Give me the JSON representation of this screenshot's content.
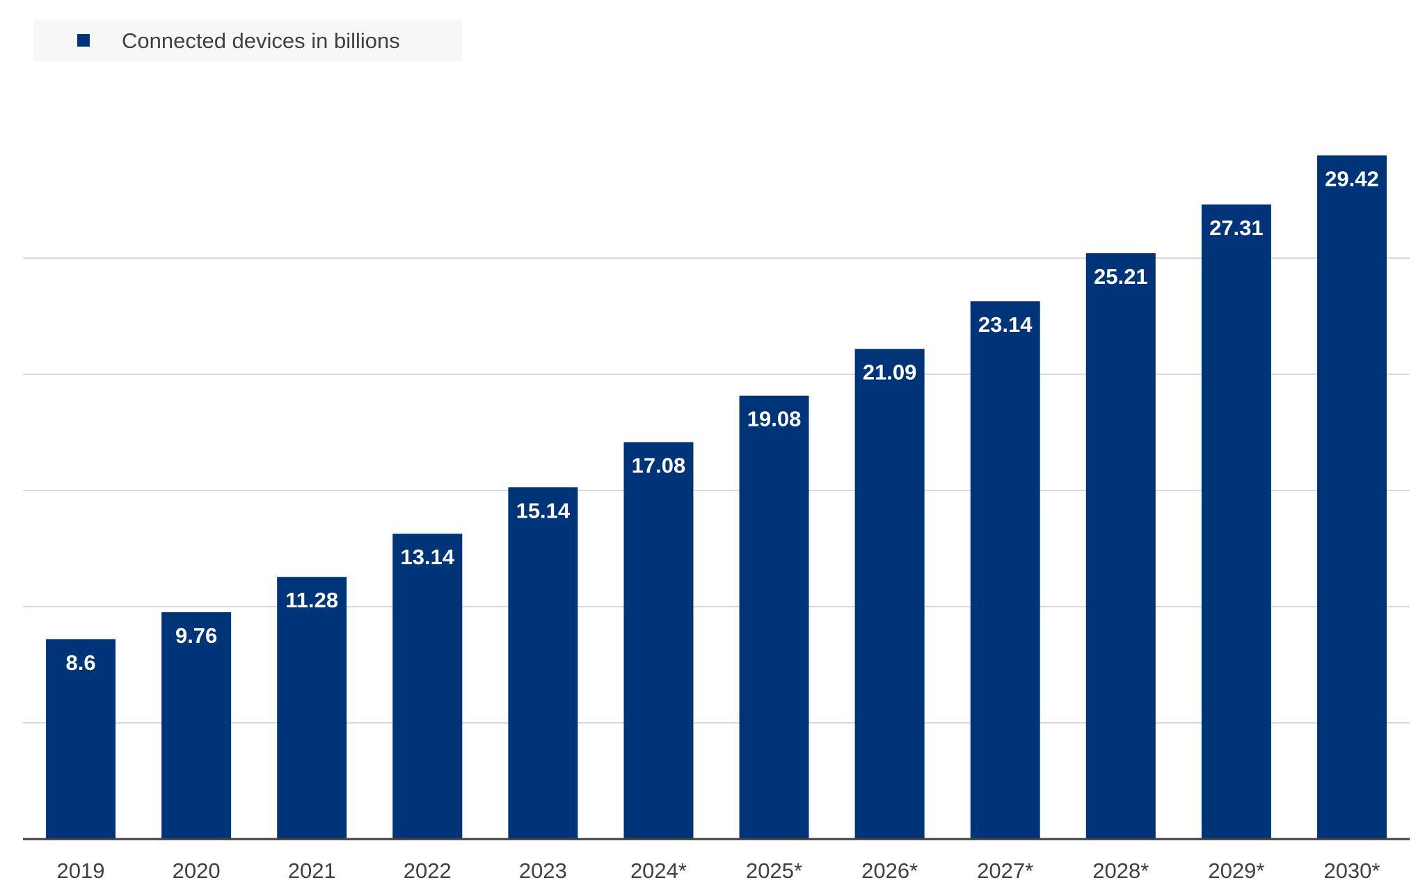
{
  "chart_data": {
    "type": "bar",
    "categories": [
      "2019",
      "2020",
      "2021",
      "2022",
      "2023",
      "2024*",
      "2025*",
      "2026*",
      "2027*",
      "2028*",
      "2029*",
      "2030*"
    ],
    "series": [
      {
        "name": "Connected devices in billions",
        "values": [
          8.6,
          9.76,
          11.28,
          13.14,
          15.14,
          17.08,
          19.08,
          21.09,
          23.14,
          25.21,
          27.31,
          29.42
        ],
        "labels": [
          "8.6",
          "9.76",
          "11.28",
          "13.14",
          "15.14",
          "17.08",
          "19.08",
          "21.09",
          "23.14",
          "25.21",
          "27.31",
          "29.42"
        ],
        "color": "#003479"
      }
    ],
    "ylim": [
      0,
      30
    ],
    "y_gridlines": [
      5,
      10,
      15,
      20,
      25
    ],
    "grid": true,
    "legend_position": "top-left",
    "y_axis_labels_shown": false,
    "colors": {
      "bar": "#003479",
      "grid": "#d9d9d9",
      "axis": "#404040",
      "legend_background": "#f7f7f7",
      "data_label": "#ffffff",
      "tick_label": "#404040"
    }
  }
}
